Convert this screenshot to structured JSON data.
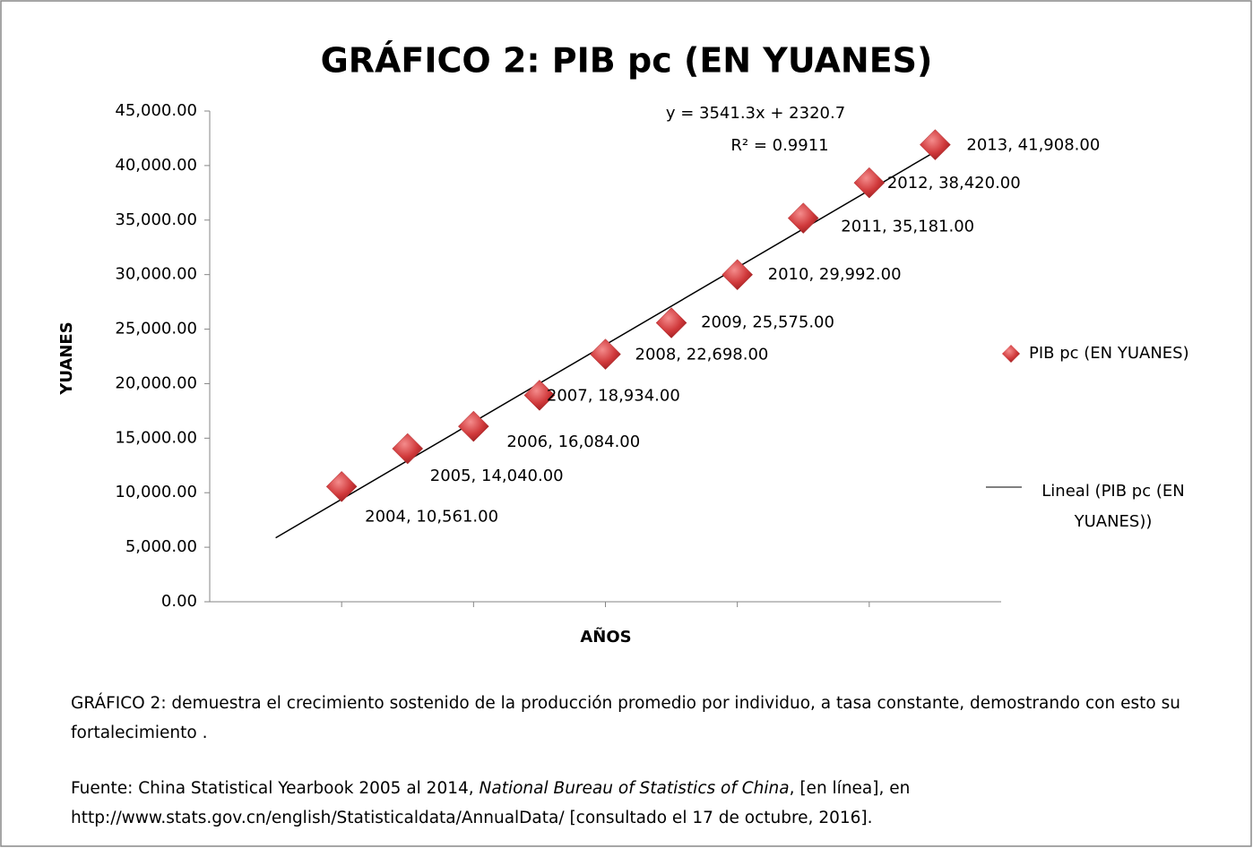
{
  "chart_data": {
    "type": "scatter",
    "title": "GRÁFICO 2: PIB pc (EN YUANES)",
    "x_label": "AÑOS",
    "y_label": "YUANES",
    "series": [
      {
        "name": "PIB pc (EN YUANES)",
        "color": "#d0393b",
        "x": [
          2004,
          2005,
          2006,
          2007,
          2008,
          2009,
          2010,
          2011,
          2012,
          2013
        ],
        "values": [
          10561,
          14040,
          16084,
          18934,
          22698,
          25575,
          29992,
          35181,
          38420,
          41908
        ],
        "value_labels": [
          "2004, 10,561.00",
          "2005, 14,040.00",
          "2006, 16,084.00",
          "2007, 18,934.00",
          "2008, 22,698.00",
          "2009, 25,575.00",
          "2010, 29,992.00",
          "2011, 35,181.00",
          "2012, 38,420.00",
          "2013, 41,908.00"
        ]
      }
    ],
    "trendline": {
      "name": "Lineal (PIB pc (EN YUANES))",
      "equation": "y = 3541.3x + 2320.7",
      "r_squared": "R² = 0.9911",
      "xrange": [
        2003,
        2013
      ],
      "color": "#000000"
    },
    "xlim": [
      2002,
      2014
    ],
    "xticks": [
      2004,
      2006,
      2008,
      2010,
      2012
    ],
    "ylim": [
      0,
      45000
    ],
    "yticks": [
      {
        "value": 0,
        "label": "0.00"
      },
      {
        "value": 5000,
        "label": "5,000.00"
      },
      {
        "value": 10000,
        "label": "10,000.00"
      },
      {
        "value": 15000,
        "label": "15,000.00"
      },
      {
        "value": 20000,
        "label": "20,000.00"
      },
      {
        "value": 25000,
        "label": "25,000.00"
      },
      {
        "value": 30000,
        "label": "30,000.00"
      },
      {
        "value": 35000,
        "label": "35,000.00"
      },
      {
        "value": 40000,
        "label": "40,000.00"
      },
      {
        "value": 45000,
        "label": "45,000.00"
      }
    ],
    "grid": false
  },
  "notes": [
    "GRÁFICO 2: demuestra el crecimiento sostenido de la producción promedio por individuo, a tasa constante, demostrando con esto su fortalecimiento .",
    "Fuente: China Statistical Yearbook 2005 al 2014, ",
    "National Bureau of Statistics of  China",
    ",  [en línea],  en http://www.stats.gov.cn/english/Statisticaldata/AnnualData/  [consultado el 17 de octubre, 2016]."
  ]
}
